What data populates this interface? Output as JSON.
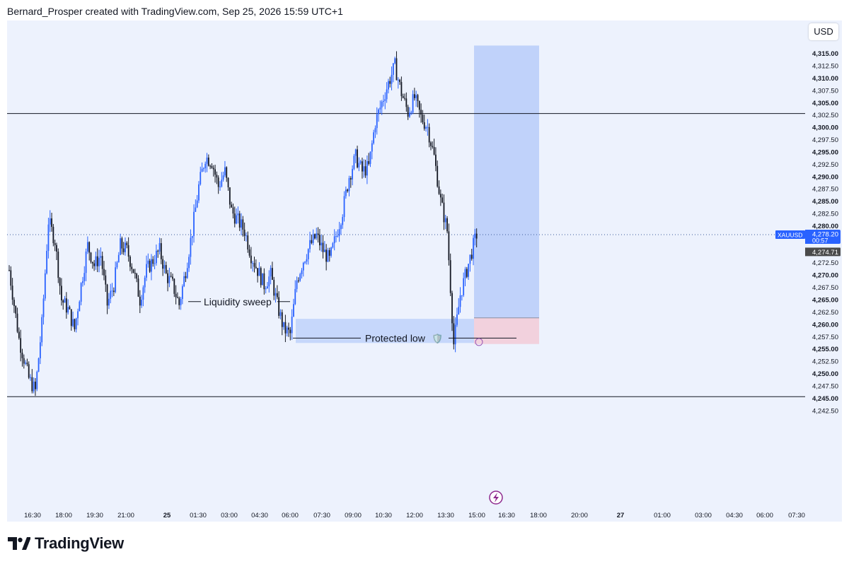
{
  "header": {
    "attribution": "Bernard_Prosper created with TradingView.com, Sep 25, 2026 15:59 UTC+1"
  },
  "toolbar": {
    "currency": "USD"
  },
  "branding": {
    "logo_text": "TradingView"
  },
  "chart_data": {
    "type": "candlestick",
    "symbol": "XAUUSD",
    "ylim": [
      4241.5,
      4317.5
    ],
    "y_ticks": [
      "4,315.00",
      "4,312.50",
      "4,310.00",
      "4,307.50",
      "4,305.00",
      "4,302.50",
      "4,300.00",
      "4,297.50",
      "4,295.00",
      "4,292.50",
      "4,290.00",
      "4,287.50",
      "4,285.00",
      "4,282.50",
      "4,280.00",
      "4,277.50",
      "4,275.00",
      "4,272.50",
      "4,270.00",
      "4,267.50",
      "4,265.00",
      "4,262.50",
      "4,260.00",
      "4,257.50",
      "4,255.00",
      "4,252.50",
      "4,250.00",
      "4,247.50",
      "4,245.00",
      "4,242.50"
    ],
    "y_tick_values": [
      4315,
      4312.5,
      4310,
      4307.5,
      4305,
      4302.5,
      4300,
      4297.5,
      4295,
      4292.5,
      4290,
      4287.5,
      4285,
      4282.5,
      4280,
      4277.5,
      4275,
      4272.5,
      4270,
      4267.5,
      4265,
      4262.5,
      4260,
      4257.5,
      4255,
      4252.5,
      4250,
      4247.5,
      4245,
      4242.5
    ],
    "x_ticks": [
      "16:30",
      "18:00",
      "19:30",
      "21:00",
      "25",
      "01:30",
      "03:00",
      "04:30",
      "06:00",
      "07:30",
      "09:00",
      "10:30",
      "12:00",
      "13:30",
      "15:00",
      "16:30",
      "18:00",
      "20:00",
      "27",
      "01:00",
      "03:00",
      "04:30",
      "06:00",
      "07:30"
    ],
    "x_bold": [
      "25",
      "27"
    ],
    "current_price": {
      "label": "4,278.20",
      "countdown": "00:57",
      "value": 4278.2
    },
    "secondary_price": {
      "label": "4,274.71",
      "value": 4274.71
    },
    "horizontal_lines": [
      {
        "value": 4302.8
      },
      {
        "value": 4245.3
      }
    ],
    "annotations": {
      "liquidity_sweep": {
        "text": "Liquidity sweep",
        "value": 4264.6
      },
      "protected_low": {
        "text": "Protected low",
        "value": 4257.2,
        "emoji": "🛡️"
      }
    },
    "position": {
      "entry": 4261.3,
      "target": 4316.6,
      "stop": 4256.0
    },
    "demand_zone": {
      "top": 4261.1,
      "bottom": 4256.2
    },
    "series_outline": [
      [
        0,
        4271
      ],
      [
        6,
        4257
      ],
      [
        12,
        4249
      ],
      [
        16,
        4246.5
      ],
      [
        20,
        4260
      ],
      [
        24,
        4281
      ],
      [
        28,
        4277
      ],
      [
        32,
        4265
      ],
      [
        36,
        4263
      ],
      [
        40,
        4259
      ],
      [
        44,
        4268
      ],
      [
        48,
        4276
      ],
      [
        52,
        4272
      ],
      [
        56,
        4274
      ],
      [
        60,
        4264
      ],
      [
        64,
        4268
      ],
      [
        68,
        4276
      ],
      [
        72,
        4275
      ],
      [
        76,
        4271
      ],
      [
        80,
        4265
      ],
      [
        84,
        4271
      ],
      [
        88,
        4273
      ],
      [
        92,
        4275
      ],
      [
        96,
        4270
      ],
      [
        100,
        4268
      ],
      [
        104,
        4264
      ],
      [
        108,
        4271
      ],
      [
        112,
        4279
      ],
      [
        116,
        4288
      ],
      [
        120,
        4294
      ],
      [
        124,
        4293
      ],
      [
        128,
        4288
      ],
      [
        132,
        4291
      ],
      [
        136,
        4283
      ],
      [
        140,
        4281
      ],
      [
        144,
        4279
      ],
      [
        148,
        4274
      ],
      [
        152,
        4271
      ],
      [
        156,
        4268
      ],
      [
        160,
        4270
      ],
      [
        164,
        4264
      ],
      [
        168,
        4259
      ],
      [
        172,
        4258
      ],
      [
        176,
        4269
      ],
      [
        180,
        4273
      ],
      [
        184,
        4276
      ],
      [
        188,
        4278
      ],
      [
        192,
        4275
      ],
      [
        196,
        4273
      ],
      [
        200,
        4278
      ],
      [
        204,
        4283
      ],
      [
        208,
        4290
      ],
      [
        212,
        4294
      ],
      [
        216,
        4291
      ],
      [
        220,
        4292
      ],
      [
        224,
        4301
      ],
      [
        228,
        4305
      ],
      [
        232,
        4309
      ],
      [
        236,
        4312.5
      ],
      [
        240,
        4307
      ],
      [
        244,
        4303
      ],
      [
        248,
        4306
      ],
      [
        252,
        4302
      ],
      [
        256,
        4300
      ],
      [
        260,
        4294
      ],
      [
        264,
        4285
      ],
      [
        268,
        4279
      ],
      [
        272,
        4256
      ],
      [
        276,
        4266
      ],
      [
        280,
        4271
      ],
      [
        284,
        4276
      ],
      [
        286,
        4278.2
      ]
    ]
  }
}
